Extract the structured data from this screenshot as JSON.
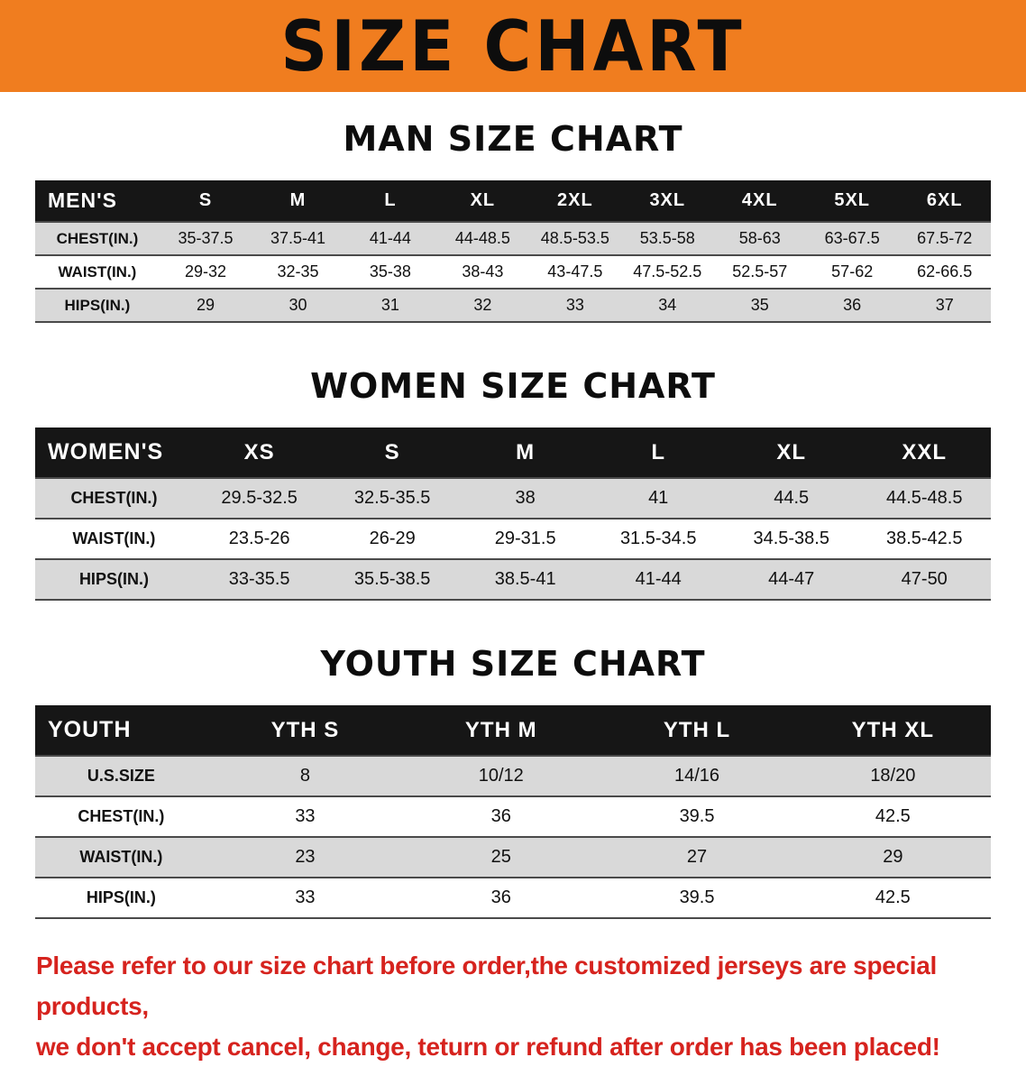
{
  "colors": {
    "banner-bg": "#f07d1f",
    "header-bg": "#161616",
    "stripe": "#d9d9d9",
    "footer-red": "#d6231e"
  },
  "banner": {
    "title": "SIZE CHART"
  },
  "chart_data": [
    {
      "type": "table",
      "title": "MAN SIZE CHART",
      "header": [
        "MEN'S",
        "S",
        "M",
        "L",
        "XL",
        "2XL",
        "3XL",
        "4XL",
        "5XL",
        "6XL"
      ],
      "rows": [
        [
          "CHEST(IN.)",
          "35-37.5",
          "37.5-41",
          "41-44",
          "44-48.5",
          "48.5-53.5",
          "53.5-58",
          "58-63",
          "63-67.5",
          "67.5-72"
        ],
        [
          "WAIST(IN.)",
          "29-32",
          "32-35",
          "35-38",
          "38-43",
          "43-47.5",
          "47.5-52.5",
          "52.5-57",
          "57-62",
          "62-66.5"
        ],
        [
          "HIPS(IN.)",
          "29",
          "30",
          "31",
          "32",
          "33",
          "34",
          "35",
          "36",
          "37"
        ]
      ]
    },
    {
      "type": "table",
      "title": "WOMEN SIZE CHART",
      "header": [
        "WOMEN'S",
        "XS",
        "S",
        "M",
        "L",
        "XL",
        "XXL"
      ],
      "rows": [
        [
          "CHEST(IN.)",
          "29.5-32.5",
          "32.5-35.5",
          "38",
          "41",
          "44.5",
          "44.5-48.5"
        ],
        [
          "WAIST(IN.)",
          "23.5-26",
          "26-29",
          "29-31.5",
          "31.5-34.5",
          "34.5-38.5",
          "38.5-42.5"
        ],
        [
          "HIPS(IN.)",
          "33-35.5",
          "35.5-38.5",
          "38.5-41",
          "41-44",
          "44-47",
          "47-50"
        ]
      ]
    },
    {
      "type": "table",
      "title": "YOUTH SIZE CHART",
      "header": [
        "YOUTH",
        "YTH S",
        "YTH M",
        "YTH L",
        "YTH XL"
      ],
      "rows": [
        [
          "U.S.SIZE",
          "8",
          "10/12",
          "14/16",
          "18/20"
        ],
        [
          "CHEST(IN.)",
          "33",
          "36",
          "39.5",
          "42.5"
        ],
        [
          "WAIST(IN.)",
          "23",
          "25",
          "27",
          "29"
        ],
        [
          "HIPS(IN.)",
          "33",
          "36",
          "39.5",
          "42.5"
        ]
      ]
    }
  ],
  "footer": {
    "line1": "Please refer to our size chart before order,the customized jerseys are special products,",
    "line2": "we don't accept cancel, change, teturn or refund after order has been placed!"
  }
}
